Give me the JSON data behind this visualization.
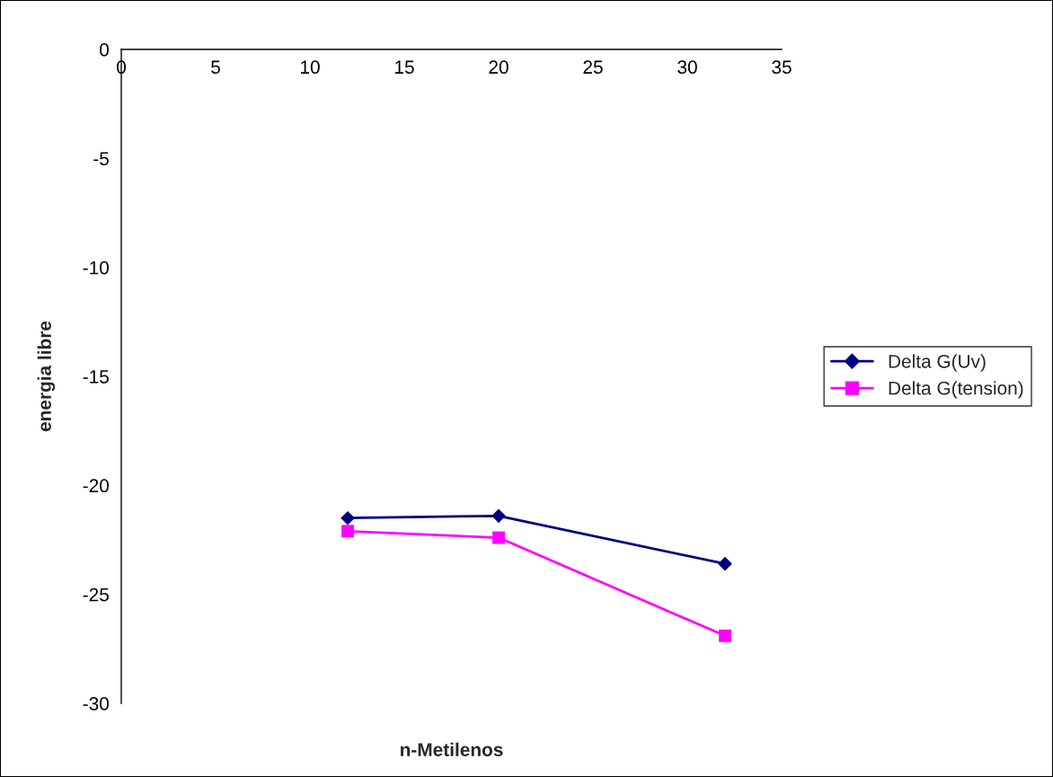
{
  "chart_data": {
    "type": "line",
    "xlabel": "n-Metilenos",
    "ylabel": "energia libre",
    "x": [
      12,
      20,
      32
    ],
    "series": [
      {
        "name": "Delta G(Uv)",
        "color": "#000080",
        "marker": "diamond",
        "values": [
          -21.5,
          -21.4,
          -23.6
        ]
      },
      {
        "name": "Delta G(tension)",
        "color": "#ff00ff",
        "marker": "square",
        "values": [
          -22.1,
          -22.4,
          -26.9
        ]
      }
    ],
    "xlim": [
      0,
      35
    ],
    "xticks": [
      0,
      5,
      10,
      15,
      20,
      25,
      30,
      35
    ],
    "ylim": [
      -30,
      0
    ],
    "yticks": [
      -30,
      -25,
      -20,
      -15,
      -10,
      -5,
      0
    ],
    "grid": false,
    "legend": "right",
    "line_style": "solid"
  }
}
